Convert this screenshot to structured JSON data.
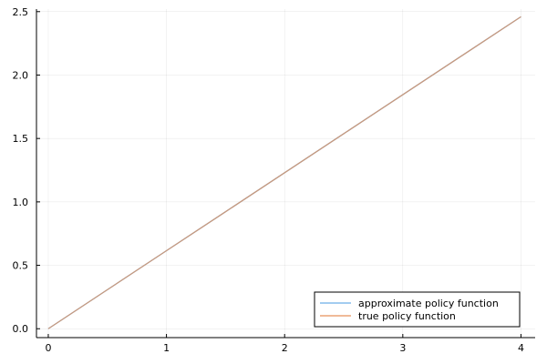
{
  "chart_data": {
    "type": "line",
    "title": "",
    "xlabel": "",
    "ylabel": "",
    "xlim": [
      -0.1,
      4.12
    ],
    "ylim": [
      -0.07,
      2.52
    ],
    "xticks": [
      0,
      1,
      2,
      3,
      4
    ],
    "xtick_labels": [
      "0",
      "1",
      "2",
      "3",
      "4"
    ],
    "yticks": [
      0.0,
      0.5,
      1.0,
      1.5,
      2.0,
      2.5
    ],
    "ytick_labels": [
      "0.0",
      "0.5",
      "1.0",
      "1.5",
      "2.0",
      "2.5"
    ],
    "grid": true,
    "legend_position": "bottom-right",
    "series": [
      {
        "name": "approximate policy function",
        "color": "#6aaee8",
        "x": [
          0,
          0.5,
          1,
          1.5,
          2,
          2.5,
          3,
          3.5,
          4
        ],
        "y": [
          0,
          0.3075,
          0.615,
          0.9225,
          1.23,
          1.5375,
          1.845,
          2.1525,
          2.46
        ]
      },
      {
        "name": "true policy function",
        "color": "#e8915a",
        "x": [
          0,
          0.5,
          1,
          1.5,
          2,
          2.5,
          3,
          3.5,
          4
        ],
        "y": [
          0,
          0.3075,
          0.615,
          0.9225,
          1.23,
          1.5375,
          1.845,
          2.1525,
          2.46
        ]
      }
    ]
  }
}
